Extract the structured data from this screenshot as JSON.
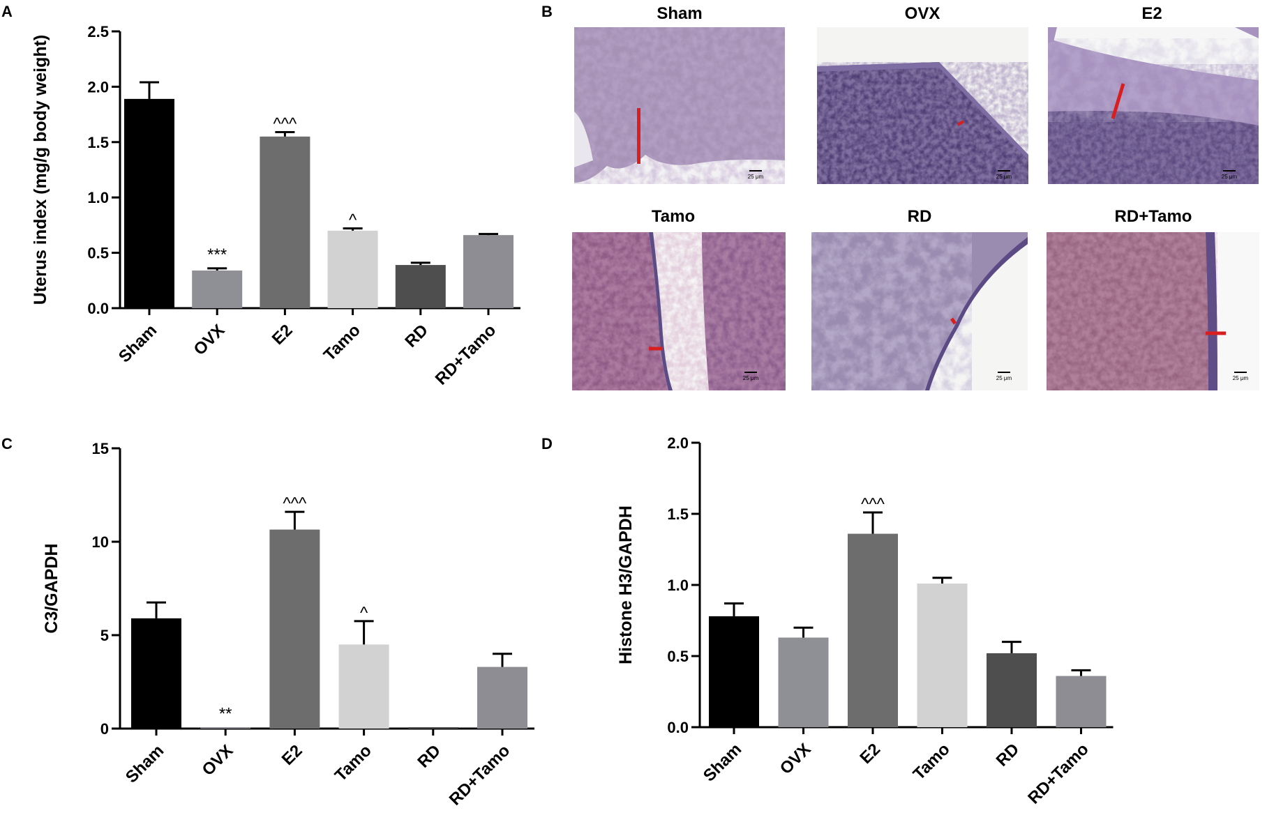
{
  "panels": {
    "A": "A",
    "B": "B",
    "C": "C",
    "D": "D"
  },
  "colors": {
    "Sham": "#000000",
    "OVX": "#8f8f96",
    "E2": "#6d6d6d",
    "Tamo": "#d2d2d2",
    "RD": "#4e4e4e",
    "RD+Tamo": "#8d8d93"
  },
  "micrographs": {
    "scale_label": "25 μm",
    "images": [
      {
        "title": "Sham"
      },
      {
        "title": "OVX"
      },
      {
        "title": "E2"
      },
      {
        "title": "Tamo"
      },
      {
        "title": "RD"
      },
      {
        "title": "RD+Tamo"
      }
    ]
  },
  "chart_data": [
    {
      "type": "bar",
      "panel": "A",
      "ylabel": "Uterus index (mg/g body weight)",
      "ylim": [
        0,
        2.5
      ],
      "yticks": [
        "0.0",
        "0.5",
        "1.0",
        "1.5",
        "2.0",
        "2.5"
      ],
      "categories": [
        "Sham",
        "OVX",
        "E2",
        "Tamo",
        "RD",
        "RD+Tamo"
      ],
      "values": [
        1.89,
        0.34,
        1.55,
        0.7,
        0.39,
        0.66
      ],
      "errors": [
        0.15,
        0.02,
        0.04,
        0.02,
        0.02,
        0.01
      ],
      "annotations": [
        "",
        "***",
        "^^^",
        "^",
        "",
        ""
      ]
    },
    {
      "type": "bar",
      "panel": "C",
      "ylabel": "C3/GAPDH",
      "ylim": [
        0,
        15
      ],
      "yticks": [
        "0",
        "5",
        "10",
        "15"
      ],
      "categories": [
        "Sham",
        "OVX",
        "E2",
        "Tamo",
        "RD",
        "RD+Tamo"
      ],
      "values": [
        5.9,
        0.05,
        10.65,
        4.5,
        0.05,
        3.3
      ],
      "errors": [
        0.85,
        0.0,
        0.95,
        1.25,
        0.0,
        0.7
      ],
      "annotations": [
        "",
        "**",
        "^^^",
        "^",
        "",
        ""
      ]
    },
    {
      "type": "bar",
      "panel": "D",
      "ylabel": "Histone H3/GAPDH",
      "ylim": [
        0,
        2.0
      ],
      "yticks": [
        "0.0",
        "0.5",
        "1.0",
        "1.5",
        "2.0"
      ],
      "categories": [
        "Sham",
        "OVX",
        "E2",
        "Tamo",
        "RD",
        "RD+Tamo"
      ],
      "values": [
        0.78,
        0.63,
        1.36,
        1.01,
        0.52,
        0.36
      ],
      "errors": [
        0.09,
        0.07,
        0.15,
        0.04,
        0.08,
        0.04
      ],
      "annotations": [
        "",
        "",
        "^^^",
        "",
        "",
        ""
      ]
    }
  ]
}
